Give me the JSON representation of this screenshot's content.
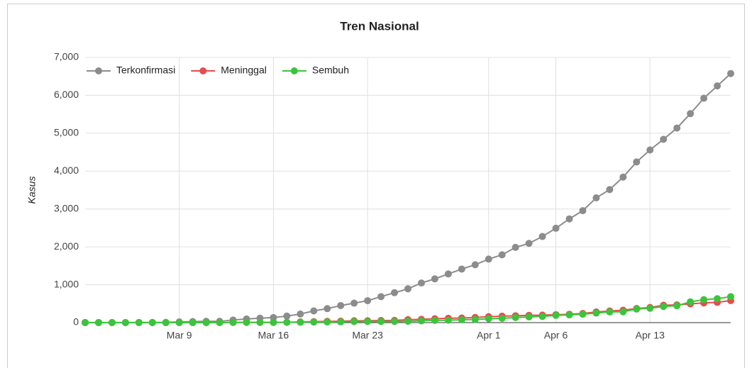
{
  "chart_data": {
    "type": "line",
    "title": "Tren Nasional",
    "y_label": "Kasus",
    "categories": [
      null,
      null,
      null,
      null,
      null,
      null,
      null,
      "Mar 9",
      null,
      null,
      null,
      null,
      null,
      null,
      "Mar 16",
      null,
      null,
      null,
      null,
      null,
      null,
      "Mar 23",
      null,
      null,
      null,
      null,
      null,
      null,
      null,
      null,
      "Apr 1",
      null,
      null,
      null,
      null,
      "Apr 6",
      null,
      null,
      null,
      null,
      null,
      null,
      "Apr 13",
      null,
      null,
      null,
      null,
      null,
      null
    ],
    "series": [
      {
        "name": "Terkonfirmasi",
        "color": "#8c8c8c",
        "values": [
          2,
          2,
          2,
          2,
          4,
          4,
          6,
          19,
          27,
          34,
          34,
          69,
          96,
          117,
          134,
          172,
          227,
          309,
          369,
          450,
          514,
          579,
          686,
          790,
          893,
          1046,
          1155,
          1285,
          1414,
          1528,
          1677,
          1790,
          1986,
          2092,
          2273,
          2491,
          2738,
          2956,
          3293,
          3512,
          3842,
          4241,
          4557,
          4839,
          5136,
          5516,
          5923,
          6248,
          6575
        ]
      },
      {
        "name": "Meninggal",
        "color": "#e84c4c",
        "values": [
          0,
          0,
          0,
          0,
          0,
          0,
          0,
          0,
          0,
          1,
          1,
          4,
          5,
          5,
          5,
          7,
          19,
          25,
          32,
          38,
          48,
          49,
          55,
          58,
          78,
          87,
          102,
          114,
          122,
          136,
          157,
          170,
          181,
          191,
          198,
          209,
          221,
          240,
          280,
          306,
          327,
          373,
          399,
          459,
          469,
          496,
          520,
          535,
          582
        ]
      },
      {
        "name": "Sembuh",
        "color": "#3cc43c",
        "values": [
          0,
          0,
          0,
          0,
          0,
          0,
          0,
          0,
          0,
          2,
          2,
          5,
          8,
          8,
          8,
          9,
          11,
          15,
          16,
          20,
          29,
          30,
          30,
          31,
          35,
          46,
          59,
          64,
          75,
          81,
          103,
          112,
          134,
          150,
          164,
          192,
          204,
          222,
          252,
          282,
          286,
          359,
          380,
          426,
          446,
          548,
          607,
          631,
          686
        ]
      }
    ],
    "ylim": [
      0,
      7000
    ],
    "yticks": [
      0,
      {
        "value": 1000,
        "label": "1,000"
      },
      {
        "value": 2000,
        "label": "2,000"
      },
      {
        "value": 3000,
        "label": "3,000"
      },
      {
        "value": 4000,
        "label": "4,000"
      },
      {
        "value": 5000,
        "label": "5,000"
      },
      {
        "value": 6000,
        "label": "6,000"
      },
      {
        "value": 7000,
        "label": "7,000"
      }
    ],
    "grid": true,
    "legend": "top-left"
  }
}
